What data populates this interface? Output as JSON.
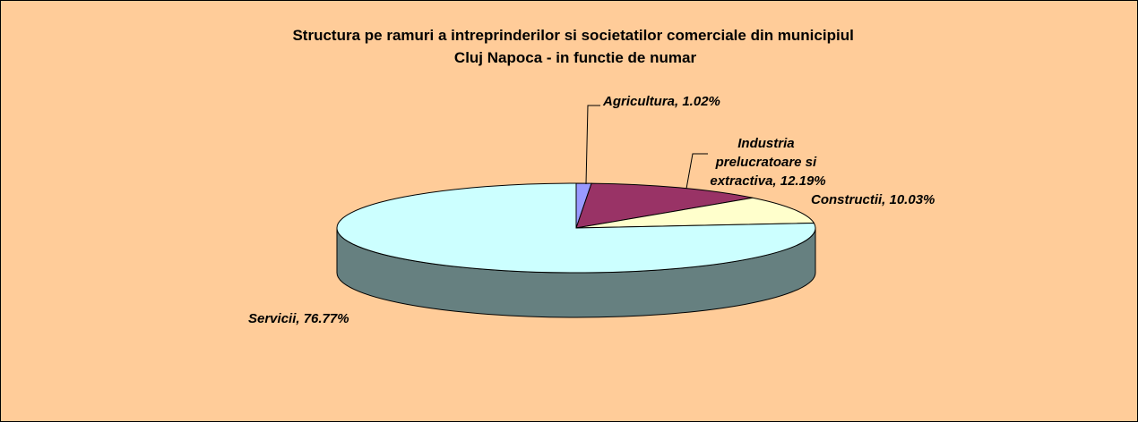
{
  "chart_data": {
    "type": "pie3d",
    "title": "Structura pe ramuri a intreprinderilor si societatilor comerciale din municipiul Cluj Napoca - in functie de numar",
    "values": [
      1.02,
      12.19,
      10.03,
      76.77
    ],
    "value_labels": [
      "Agricultura, 1.02%",
      "Industria prelucratoare si extractiva, 12.19%",
      "Constructii, 10.03%",
      "Servicii, 76.77%"
    ],
    "colors": [
      "#9999ff",
      "#993366",
      "#ffffcc",
      "#ccffff"
    ]
  }
}
